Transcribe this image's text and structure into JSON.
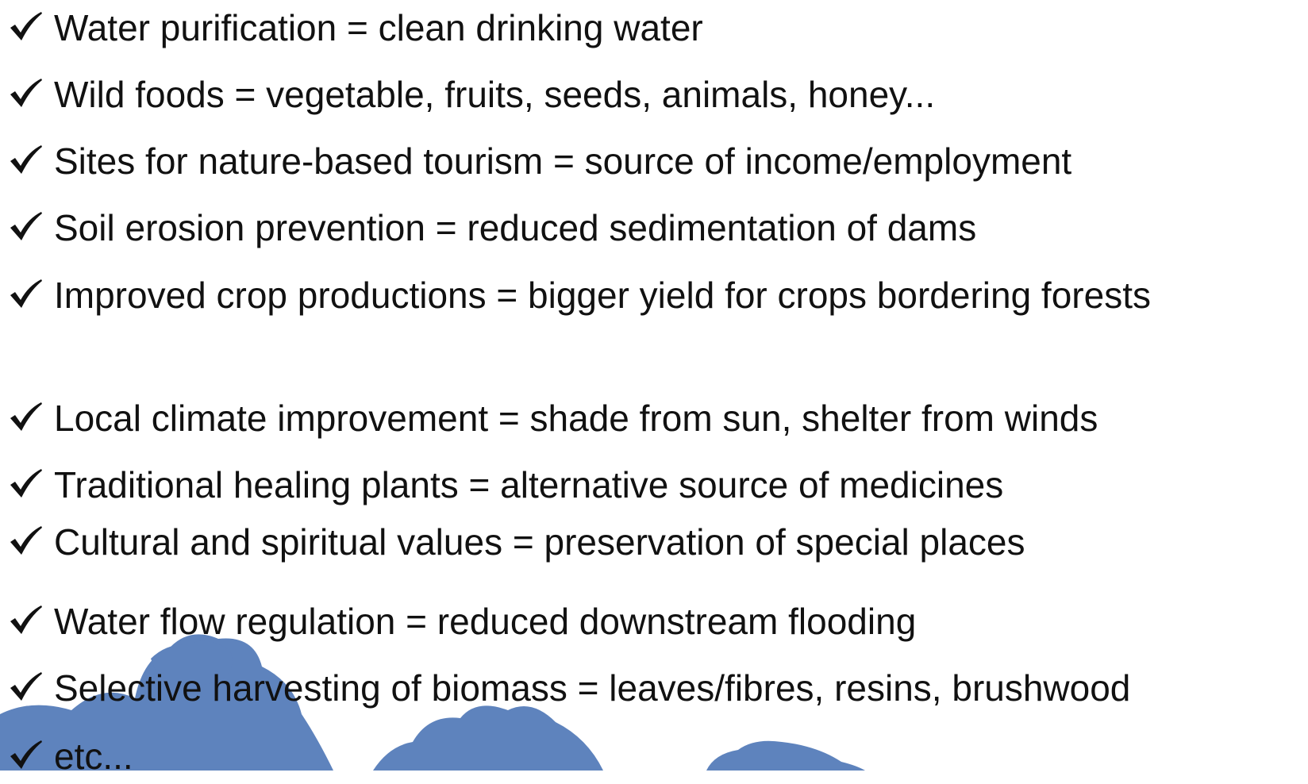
{
  "list": {
    "items": [
      "Water purification = clean drinking water",
      "Wild foods = vegetable, fruits, seeds, animals, honey...",
      "Sites for nature-based tourism = source of income/employment",
      "Soil erosion prevention = reduced sedimentation of dams",
      "Improved crop productions = bigger yield for crops bordering forests",
      "Local climate improvement = shade from sun, shelter from winds",
      "Traditional healing plants = alternative source of medicines",
      "Cultural and spiritual values = preservation of special places",
      "Water flow regulation = reduced downstream flooding",
      "Selective harvesting of biomass = leaves/fibres, resins, brushwood",
      "etc..."
    ]
  }
}
